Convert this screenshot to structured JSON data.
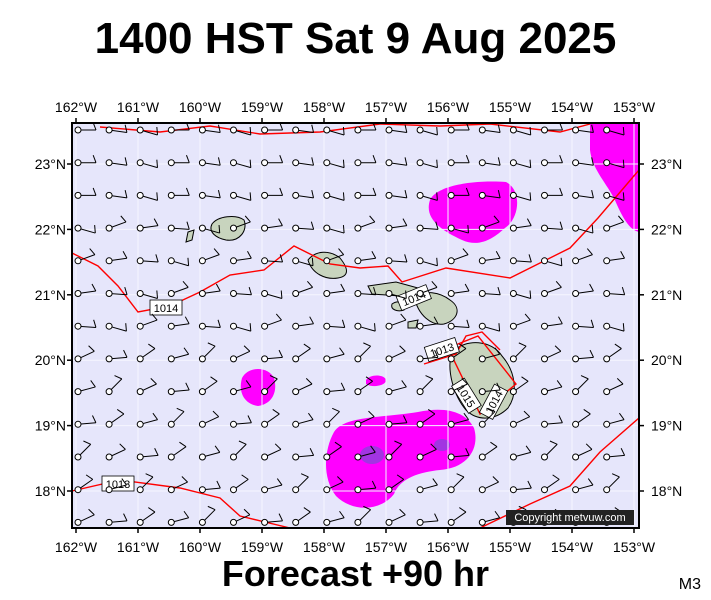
{
  "title": "1400 HST Sat 9 Aug 2025",
  "footer": "Forecast +90 hr",
  "code": "M3",
  "copyright": "Copyright metvuw.com",
  "lon_labels": [
    "162°W",
    "161°W",
    "160°W",
    "159°W",
    "158°W",
    "157°W",
    "156°W",
    "155°W",
    "154°W",
    "153°W"
  ],
  "lat_labels": [
    "23°N",
    "22°N",
    "21°N",
    "20°N",
    "19°N",
    "18°N"
  ],
  "isobar_labels": [
    "1014",
    "1014",
    "1013",
    "1013",
    "1015",
    "1014",
    "1013",
    "1013",
    "1013"
  ],
  "colors": {
    "ocean": "#e6e6fb",
    "land": "#c8d4be",
    "isobar": "#ff0000",
    "rain_light": "#ff00ff",
    "rain_heavy": "#a235e2",
    "grid": "#ffffff"
  }
}
